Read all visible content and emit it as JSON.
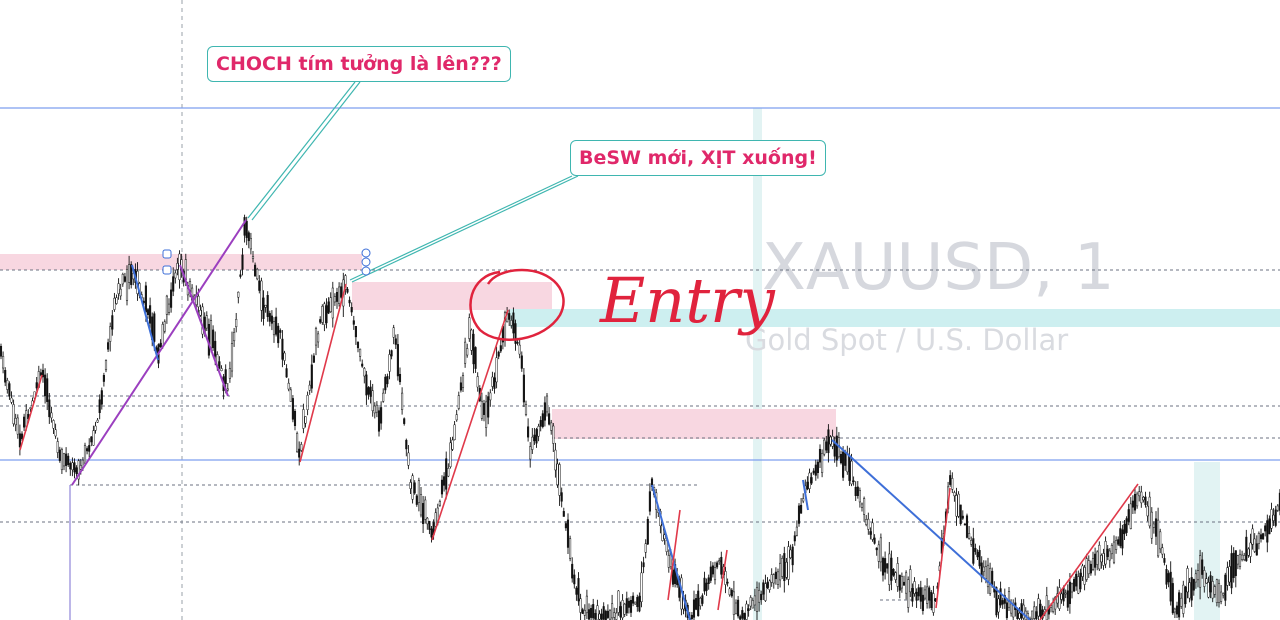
{
  "chart_data": {
    "type": "candlestick",
    "watermark": {
      "symbol": "XAUUSD, 1",
      "description": "Gold Spot / U.S. Dollar"
    },
    "annotations": {
      "callout_1": "CHOCH tím tưởng là lên???",
      "callout_2": "BeSW mới, XỊT xuống!",
      "handwritten": "Entry"
    },
    "y_domain": [
      3333,
      3353
    ],
    "levels": [
      3349.6,
      3344.3,
      3341.8,
      3339.1,
      3336.8,
      3334.5
    ],
    "zones": [
      {
        "label": "",
        "from": 3346.9,
        "to": 3346.3,
        "color": "#f8d7e1"
      },
      {
        "label": "",
        "from": 3346.2,
        "to": 3345.2,
        "color": "#f8d7e1"
      },
      {
        "label": "",
        "from": 3343.4,
        "to": 3342.5,
        "color": "#f8d7e1"
      },
      {
        "label": "",
        "from": 3344.9,
        "to": 3344.3,
        "color": "#cdeff0"
      }
    ],
    "colors": {
      "up": "#000000",
      "down": "#000000",
      "trend_purple": "#9b3fbf",
      "trend_blue": "#3e6fd8",
      "trend_red": "#e0394a",
      "level_blue": "#7e9fef"
    }
  }
}
